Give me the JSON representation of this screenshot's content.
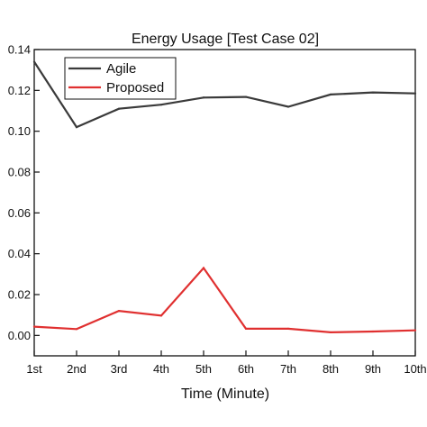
{
  "chart_data": {
    "type": "line",
    "title": "Energy Usage [Test Case 02]",
    "xlabel": "Time (Minute)",
    "ylabel": "",
    "categories": [
      "1st",
      "2nd",
      "3rd",
      "4th",
      "5th",
      "6th",
      "7th",
      "8th",
      "9th",
      "10th"
    ],
    "ylim": [
      -0.01,
      0.14
    ],
    "yticks": [
      0.0,
      0.02,
      0.04,
      0.06,
      0.08,
      0.1,
      0.12,
      0.14
    ],
    "ytick_labels": [
      "0.00",
      "0.02",
      "0.04",
      "0.06",
      "0.08",
      "0.10",
      "0.12",
      "0.14"
    ],
    "grid": false,
    "legend_position": "top-left",
    "series": [
      {
        "name": "Agile",
        "color": "#3a3a3a",
        "values": [
          0.134,
          0.102,
          0.111,
          0.113,
          0.1165,
          0.1168,
          0.112,
          0.118,
          0.119,
          0.1185
        ]
      },
      {
        "name": "Proposed",
        "color": "#e03030",
        "values": [
          0.0043,
          0.0031,
          0.012,
          0.0097,
          0.033,
          0.0033,
          0.0033,
          0.0015,
          0.0019,
          0.0025
        ]
      }
    ]
  }
}
